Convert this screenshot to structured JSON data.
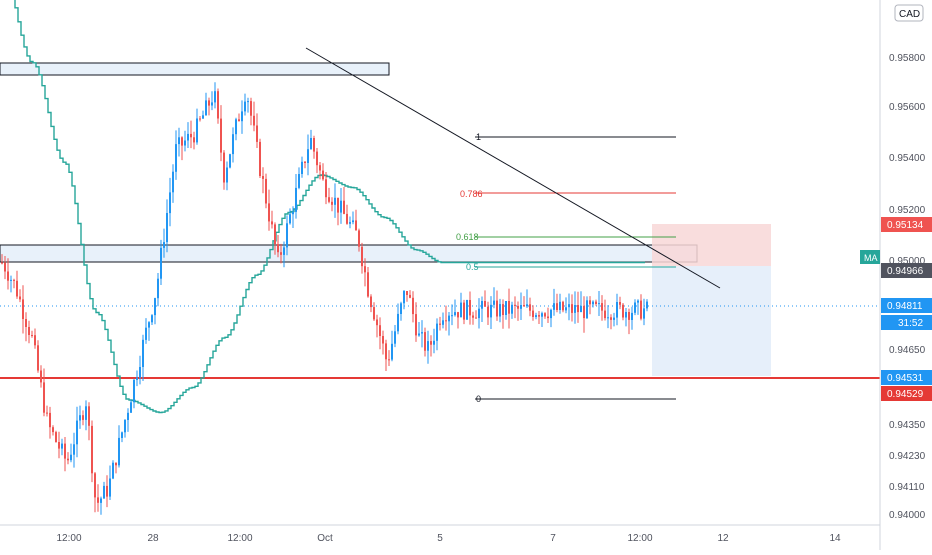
{
  "header": {
    "currency": "CAD"
  },
  "indicator": {
    "label": "MA"
  },
  "price_tags": {
    "red_top": "0.95134",
    "level_gray": "0.94966",
    "current": "0.94811",
    "countdown": "31:52",
    "blue_level": "0.94531",
    "red_bottom": "0.94529"
  },
  "fib": {
    "l1": "1",
    "l786": "0.786",
    "l618": "0.618",
    "l5": "0.5",
    "l0": "0"
  },
  "colors": {
    "up": "#2196f3",
    "down": "#ef5350",
    "ma": "#26a69a",
    "support": "#e53935",
    "zone_fill": "#e3edf7"
  },
  "chart_data": {
    "type": "candlestick",
    "ylim": [
      0.9395,
      0.9605
    ],
    "y_ticks": [
      "0.95800",
      "0.95600",
      "0.95400",
      "0.95200",
      "0.95000",
      "0.94650",
      "0.94350",
      "0.94230",
      "0.94110",
      "0.94000"
    ],
    "x_ticks": [
      "12:00",
      "28",
      "12:00",
      "Oct",
      "5",
      "7",
      "12:00",
      "12",
      "14"
    ],
    "trend_waypoints": [
      {
        "x": 0.0,
        "y": 0.95
      },
      {
        "x": 0.02,
        "y": 0.949
      },
      {
        "x": 0.045,
        "y": 0.947
      },
      {
        "x": 0.07,
        "y": 0.9435
      },
      {
        "x": 0.1,
        "y": 0.942
      },
      {
        "x": 0.13,
        "y": 0.9445
      },
      {
        "x": 0.145,
        "y": 0.9403
      },
      {
        "x": 0.165,
        "y": 0.941
      },
      {
        "x": 0.2,
        "y": 0.9447
      },
      {
        "x": 0.24,
        "y": 0.949
      },
      {
        "x": 0.27,
        "y": 0.9545
      },
      {
        "x": 0.3,
        "y": 0.9552
      },
      {
        "x": 0.33,
        "y": 0.9568
      },
      {
        "x": 0.345,
        "y": 0.9535
      },
      {
        "x": 0.38,
        "y": 0.957
      },
      {
        "x": 0.4,
        "y": 0.954
      },
      {
        "x": 0.43,
        "y": 0.95
      },
      {
        "x": 0.46,
        "y": 0.953
      },
      {
        "x": 0.48,
        "y": 0.955
      },
      {
        "x": 0.5,
        "y": 0.9532
      },
      {
        "x": 0.53,
        "y": 0.952
      },
      {
        "x": 0.555,
        "y": 0.951
      },
      {
        "x": 0.57,
        "y": 0.949
      },
      {
        "x": 0.585,
        "y": 0.9475
      },
      {
        "x": 0.6,
        "y": 0.946
      },
      {
        "x": 0.615,
        "y": 0.9475
      },
      {
        "x": 0.63,
        "y": 0.949
      },
      {
        "x": 0.65,
        "y": 0.947
      },
      {
        "x": 0.665,
        "y": 0.9465
      },
      {
        "x": 0.685,
        "y": 0.948
      },
      {
        "x": 0.7,
        "y": 0.9481
      }
    ],
    "moving_average": [
      {
        "x": 0.0,
        "y": 0.962
      },
      {
        "x": 0.05,
        "y": 0.958
      },
      {
        "x": 0.1,
        "y": 0.954
      },
      {
        "x": 0.15,
        "y": 0.948
      },
      {
        "x": 0.2,
        "y": 0.9445
      },
      {
        "x": 0.25,
        "y": 0.944
      },
      {
        "x": 0.3,
        "y": 0.945
      },
      {
        "x": 0.35,
        "y": 0.947
      },
      {
        "x": 0.4,
        "y": 0.9495
      },
      {
        "x": 0.45,
        "y": 0.952
      },
      {
        "x": 0.5,
        "y": 0.9535
      },
      {
        "x": 0.55,
        "y": 0.953
      },
      {
        "x": 0.6,
        "y": 0.9518
      },
      {
        "x": 0.65,
        "y": 0.9505
      },
      {
        "x": 0.69,
        "y": 0.95
      }
    ]
  }
}
